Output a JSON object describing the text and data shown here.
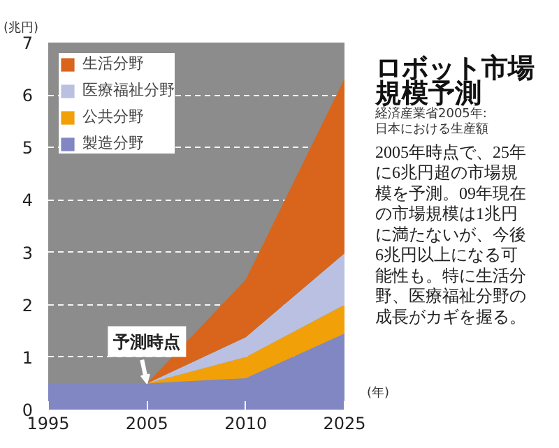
{
  "chart_data": {
    "type": "area",
    "stacked": true,
    "title": "ロボット市場規模予測",
    "subtitle": "経済産業省2005年:日本における生産額",
    "ylabel": "(兆円)",
    "xlabel": "(年)",
    "categories": [
      "1995",
      "2005",
      "2010",
      "2025"
    ],
    "series": [
      {
        "name": "製造分野",
        "color": "#8087c2",
        "values": [
          0.5,
          0.5,
          0.6,
          1.45
        ]
      },
      {
        "name": "公共分野",
        "color": "#f2a007",
        "values": [
          0,
          0,
          0.4,
          0.55
        ]
      },
      {
        "name": "医療福祉分野",
        "color": "#b9c0e2",
        "values": [
          0,
          0,
          0.38,
          0.98
        ]
      },
      {
        "name": "生活分野",
        "color": "#d8651b",
        "values": [
          0,
          0,
          1.1,
          3.33
        ]
      }
    ],
    "ylim": [
      0,
      7
    ],
    "yticks": [
      0,
      1,
      2,
      3,
      4,
      5,
      6,
      7
    ],
    "grid": "y",
    "legend": "top left",
    "annotations": [
      {
        "text": "予測時点",
        "x": "2005",
        "y": 0.5
      },
      "2005年時点で、25年に6兆円超の市場規模を予測。09年現在の市場規模は1兆円に満たないが、今後6兆円以上になる可能性も。特に生活分野、医療福祉分野の成長がカギを握る。"
    ]
  }
}
